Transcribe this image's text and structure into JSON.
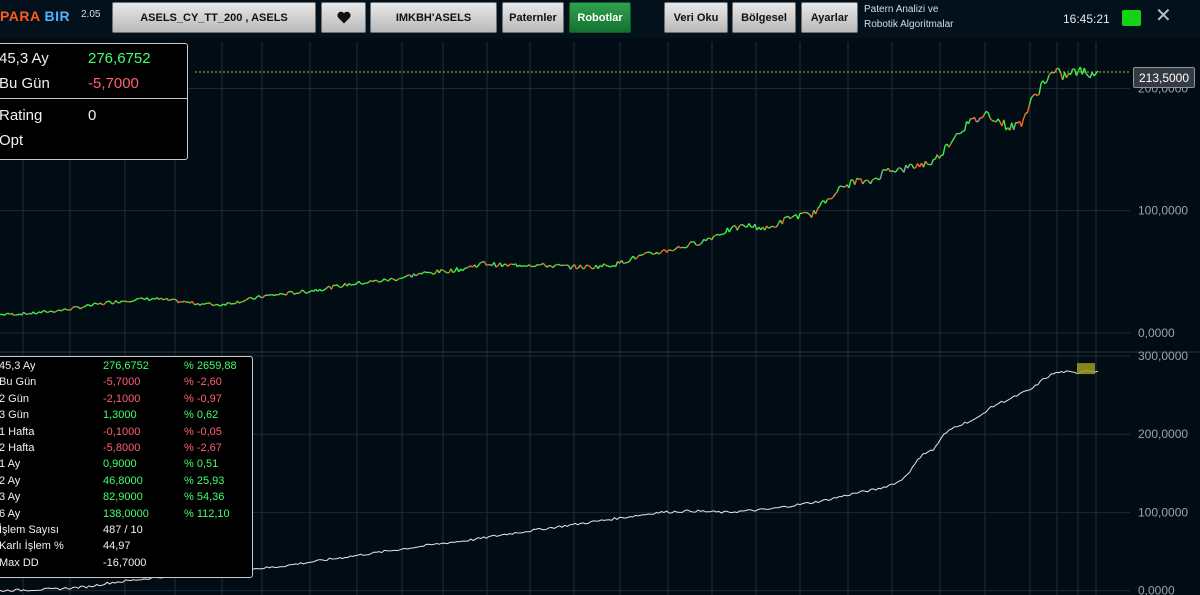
{
  "app": {
    "logo_part1": "PARA",
    "logo_part2": "BIR",
    "version": "2.05"
  },
  "toolbar": {
    "symbol_button": "ASELS_CY_TT_200  ,  ASELS",
    "favorite_icon": "heart-icon",
    "index_button": "IMKBH'ASELS",
    "patterns_button": "Paternler",
    "robots_button": "Robotlar",
    "data_read_button": "Veri Oku",
    "regional_button": "Bölgesel",
    "settings_button": "Ayarlar",
    "info_line1": "Patern Analizi ve",
    "info_line2": "Robotik Algoritmalar",
    "clock": "16:45:21",
    "status_color": "#14d214",
    "close_icon": "close-icon"
  },
  "summary_panel": {
    "row1_label": "45,3 Ay",
    "row1_value": "276,6752",
    "row2_label": "Bu Gün",
    "row2_value": "-5,7000",
    "row3_label": "Rating",
    "row3_value": "0",
    "row4_label": "Opt"
  },
  "stats_panel": {
    "rows": [
      {
        "label": "45,3 Ay",
        "value": "276,6752",
        "pct": "% 2659,88",
        "tone": "green"
      },
      {
        "label": "Bu Gün",
        "value": "-5,7000",
        "pct": "% -2,60",
        "tone": "red"
      },
      {
        "label": "2 Gün",
        "value": "-2,1000",
        "pct": "% -0,97",
        "tone": "red"
      },
      {
        "label": "3 Gün",
        "value": "1,3000",
        "pct": "% 0,62",
        "tone": "green"
      },
      {
        "label": "1 Hafta",
        "value": "-0,1000",
        "pct": "% -0,05",
        "tone": "red"
      },
      {
        "label": "2 Hafta",
        "value": "-5,8000",
        "pct": "% -2,67",
        "tone": "red"
      },
      {
        "label": "1 Ay",
        "value": "0,9000",
        "pct": "% 0,51",
        "tone": "green"
      },
      {
        "label": "2 Ay",
        "value": "46,8000",
        "pct": "% 25,93",
        "tone": "green"
      },
      {
        "label": "3 Ay",
        "value": "82,9000",
        "pct": "% 54,36",
        "tone": "green"
      },
      {
        "label": "6 Ay",
        "value": "138,0000",
        "pct": "% 112,10",
        "tone": "green"
      },
      {
        "label": "İşlem Sayısı",
        "value": "487 / 10",
        "pct": "",
        "tone": "white"
      },
      {
        "label": "Karlı İşlem %",
        "value": "44,97",
        "pct": "",
        "tone": "white"
      },
      {
        "label": "Max DD",
        "value": "-16,7000",
        "pct": "",
        "tone": "white"
      }
    ]
  },
  "chart_data": [
    {
      "type": "line",
      "name": "price",
      "y_tick_labels": [
        "200,0000",
        "100,0000",
        "0,0000"
      ],
      "y_ticks": [
        200,
        100,
        0
      ],
      "ylim": [
        -14,
        238
      ],
      "current_price_label": "213,5000",
      "current_price": 213.5,
      "x": [
        0,
        0.03,
        0.06,
        0.08,
        0.1,
        0.12,
        0.14,
        0.16,
        0.18,
        0.2,
        0.22,
        0.24,
        0.26,
        0.28,
        0.3,
        0.32,
        0.34,
        0.36,
        0.38,
        0.4,
        0.42,
        0.44,
        0.46,
        0.48,
        0.5,
        0.52,
        0.54,
        0.56,
        0.58,
        0.6,
        0.62,
        0.64,
        0.66,
        0.68,
        0.7,
        0.72,
        0.74,
        0.76,
        0.78,
        0.79,
        0.8,
        0.81,
        0.82,
        0.83,
        0.84,
        0.85,
        0.86,
        0.87,
        0.88,
        0.89,
        0.9,
        0.91,
        0.92,
        0.93,
        0.94,
        0.95,
        0.96,
        0.97,
        0.98,
        0.99,
        1.0
      ],
      "y": [
        15,
        16,
        19,
        22,
        25,
        27,
        28,
        26,
        24,
        23,
        26,
        30,
        32,
        34,
        37,
        40,
        42,
        44,
        48,
        50,
        52,
        57,
        55,
        56,
        55,
        54,
        54,
        56,
        62,
        66,
        70,
        75,
        83,
        88,
        85,
        95,
        97,
        115,
        125,
        122,
        128,
        135,
        133,
        136,
        138,
        140,
        150,
        162,
        170,
        175,
        180,
        173,
        168,
        172,
        190,
        205,
        213,
        210,
        214,
        213,
        213
      ],
      "colors": {
        "up": "#3ff045",
        "down": "#ff6a1e",
        "neutral": "#9aa3aa"
      }
    },
    {
      "type": "line",
      "name": "equity",
      "y_tick_labels": [
        "300,0000",
        "200,0000",
        "100,0000",
        "0,0000"
      ],
      "y_ticks": [
        300,
        200,
        100,
        0
      ],
      "ylim": [
        -3,
        300
      ],
      "x": [
        0,
        0.05,
        0.08,
        0.1,
        0.15,
        0.2,
        0.25,
        0.3,
        0.35,
        0.4,
        0.43,
        0.46,
        0.5,
        0.55,
        0.6,
        0.63,
        0.66,
        0.7,
        0.75,
        0.78,
        0.8,
        0.82,
        0.83,
        0.84,
        0.85,
        0.86,
        0.87,
        0.88,
        0.89,
        0.9,
        0.91,
        0.92,
        0.93,
        0.94,
        0.95,
        0.96,
        0.97,
        0.98,
        0.99,
        1.0
      ],
      "y": [
        0,
        2,
        5,
        10,
        18,
        25,
        30,
        40,
        50,
        60,
        65,
        72,
        80,
        90,
        100,
        102,
        100,
        104,
        115,
        125,
        130,
        140,
        155,
        175,
        180,
        200,
        210,
        215,
        220,
        232,
        240,
        245,
        252,
        258,
        270,
        278,
        280,
        278,
        282,
        280
      ],
      "marker_color": "#9b9b21",
      "line_color": "#e8e8e8"
    }
  ]
}
